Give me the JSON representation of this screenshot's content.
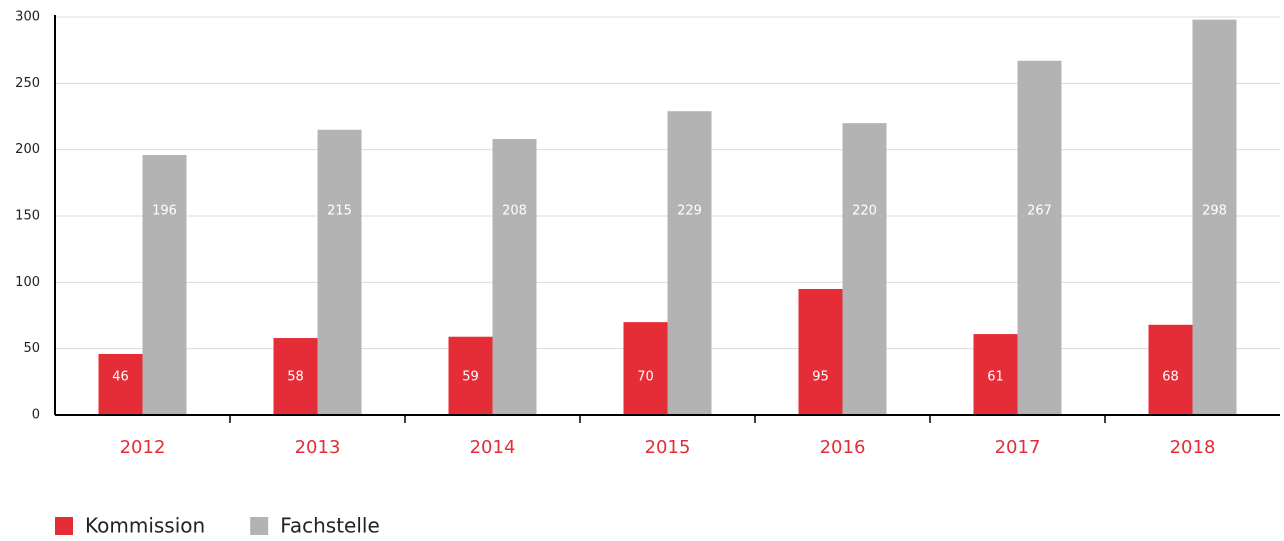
{
  "chart_data": {
    "type": "bar",
    "categories": [
      "2012",
      "2013",
      "2014",
      "2015",
      "2016",
      "2017",
      "2018"
    ],
    "series": [
      {
        "name": "Kommission",
        "color": "#e52d38",
        "values": [
          46,
          58,
          59,
          70,
          95,
          61,
          68
        ]
      },
      {
        "name": "Fachstelle",
        "color": "#b3b3b3",
        "values": [
          196,
          215,
          208,
          229,
          220,
          267,
          298
        ]
      }
    ],
    "ylim": [
      0,
      300
    ],
    "yticks": [
      0,
      50,
      100,
      150,
      200,
      250,
      300
    ],
    "grid": true,
    "legend": "bottom-left"
  }
}
